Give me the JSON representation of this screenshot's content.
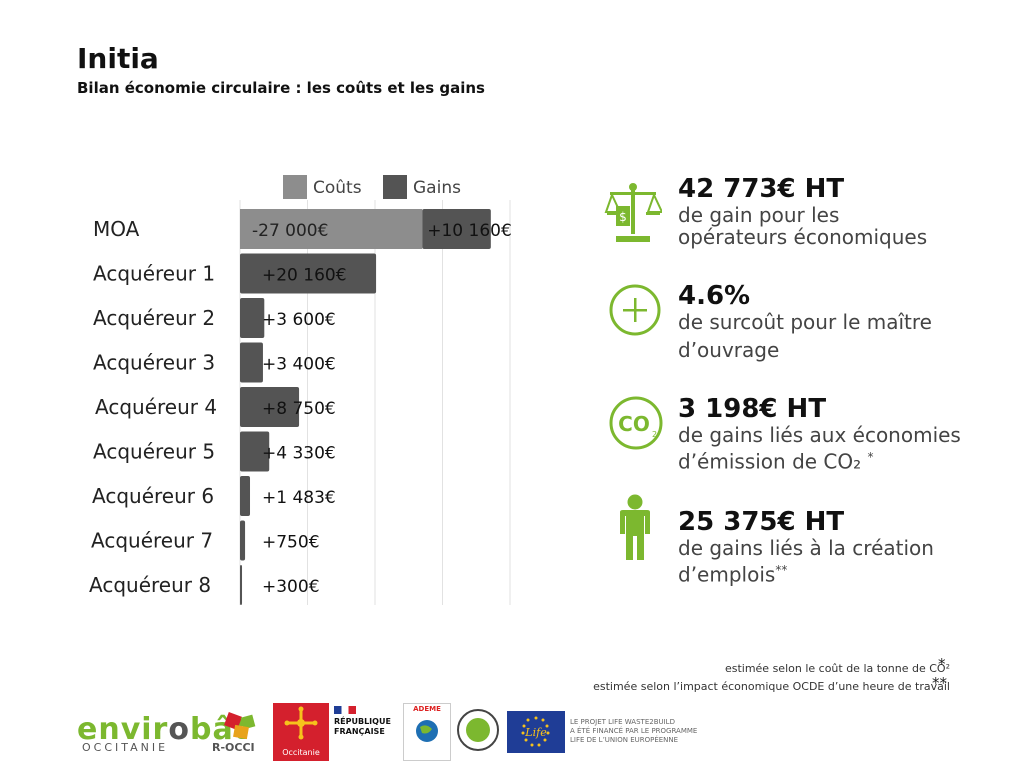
{
  "header": {
    "title": "Initia",
    "subtitle": "Bilan économie circulaire : les coûts et les gains"
  },
  "colors": {
    "costs": "#8d8d8d",
    "gains": "#545454",
    "accent": "#7cb82f"
  },
  "chart_data": {
    "type": "bar",
    "orientation": "horizontal",
    "stacked": true,
    "grid": true,
    "legend": "top",
    "series": [
      {
        "name": "Coûts",
        "values": [
          27000,
          0,
          0,
          0,
          0,
          0,
          0,
          0,
          0
        ]
      },
      {
        "name": "Gains",
        "values": [
          10160,
          20160,
          3600,
          3400,
          8750,
          4330,
          1483,
          750,
          300
        ]
      }
    ],
    "categories": [
      "MOA",
      "Acquéreur 1",
      "Acquéreur 2",
      "Acquéreur 3",
      "Acquéreur 4",
      "Acquéreur 5",
      "Acquéreur 6",
      "Acquéreur 7",
      "Acquéreur 8"
    ],
    "data_labels_costs": [
      "-27 000€",
      "",
      "",
      "",
      "",
      "",
      "",
      "",
      ""
    ],
    "data_labels_gains": [
      "+10 160€",
      "+20 160€",
      "+3 600€",
      "+3 400€",
      "+8 750€",
      "+4 330€",
      "+1 483€",
      "+750€",
      "+300€"
    ],
    "xlim": [
      0,
      40000
    ]
  },
  "stats": [
    {
      "icon": "scale-icon",
      "value": "42 773€ HT",
      "line1": "de gain pour les",
      "line2": "opérateurs économiques",
      "mark": ""
    },
    {
      "icon": "plus-circle-icon",
      "value": "4.6%",
      "line1": "de surcoût pour le maître",
      "line2": "d’ouvrage",
      "mark": ""
    },
    {
      "icon": "co2-icon",
      "value": "3 198€ HT",
      "line1": "de gains liés aux économies",
      "line2": "d’émission de CO₂",
      "mark": "*"
    },
    {
      "icon": "person-icon",
      "value": "25 375€ HT",
      "line1": "de gains liés à la création",
      "line2": "d’emplois",
      "mark": "**"
    }
  ],
  "notes": [
    {
      "text": "estimée selon le coût de la tonne de CO²",
      "mark": "*"
    },
    {
      "text": "estimée selon l’impact économique OCDE d’une heure de travail",
      "mark": "**"
    }
  ],
  "logos": {
    "envirobat_left": "envir",
    "envirobat_o": "o",
    "envirobat_right": "bât",
    "envirobat_sub": "OCCITANIE",
    "rocci": "R-OCCI",
    "occitanie": "Occitanie",
    "rf_line1": "RÉPUBLIQUE",
    "rf_line2": "FRANÇAISE",
    "ademe": "ADEME",
    "life_waste": "LIFE WASTE 2BUILD",
    "eu_text_1": "LE PROJET LIFE WASTE2BUILD",
    "eu_text_2": "A ÉTÉ FINANCÉ PAR LE PROGRAMME",
    "eu_text_3": "LIFE DE L’UNION EUROPÉENNE",
    "life_script": "Life"
  }
}
